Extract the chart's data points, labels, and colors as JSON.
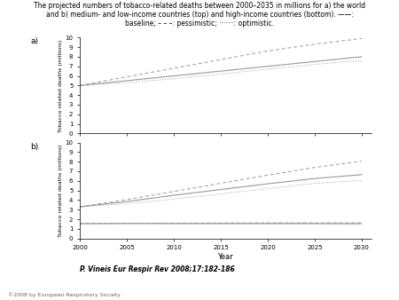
{
  "title_line1": "The projected numbers of tobacco-related deaths between 2000–2035 in millions for a) the world",
  "title_line2": "and b) medium- and low-income countries (top) and high-income countries (bottom). ——:",
  "title_line3": "baseline; – – –: pessimistic; ·······: optimistic.",
  "citation": "P. Vineis Eur Respir Rev 2008;17:182-186",
  "copyright": "©2008 by European Respiratory Society",
  "years": [
    2000,
    2005,
    2010,
    2015,
    2020,
    2025,
    2030
  ],
  "panel_a": {
    "label": "a)",
    "ylabel": "Tobacco related deaths (millions)",
    "ylim": [
      0,
      10
    ],
    "yticks": [
      0,
      1,
      2,
      3,
      4,
      5,
      6,
      7,
      8,
      9,
      10
    ],
    "baseline": [
      5.0,
      5.5,
      6.0,
      6.5,
      7.0,
      7.5,
      8.0
    ],
    "pessimistic": [
      5.0,
      5.9,
      6.8,
      7.7,
      8.6,
      9.3,
      9.9
    ],
    "optimistic": [
      5.0,
      5.3,
      5.7,
      6.2,
      6.7,
      7.2,
      7.6
    ]
  },
  "panel_b": {
    "label": "b)",
    "ylabel": "Tobacco related deaths (millions)",
    "ylim": [
      0,
      10
    ],
    "yticks": [
      0,
      1,
      2,
      3,
      4,
      5,
      6,
      7,
      8,
      9,
      10
    ],
    "baseline_top": [
      3.3,
      3.85,
      4.5,
      5.1,
      5.7,
      6.25,
      6.65
    ],
    "pessimistic_top": [
      3.3,
      4.05,
      4.9,
      5.75,
      6.6,
      7.4,
      8.05
    ],
    "optimistic_top": [
      3.3,
      3.65,
      4.1,
      4.65,
      5.2,
      5.75,
      6.05
    ],
    "baseline_bottom": [
      1.55,
      1.57,
      1.57,
      1.57,
      1.57,
      1.57,
      1.55
    ],
    "pessimistic_bottom": [
      1.55,
      1.58,
      1.6,
      1.62,
      1.63,
      1.63,
      1.63
    ],
    "optimistic_bottom": [
      1.55,
      1.53,
      1.51,
      1.5,
      1.49,
      1.48,
      1.47
    ]
  },
  "line_color": "#999999",
  "xlabel": "Year",
  "xticks": [
    2000,
    2005,
    2010,
    2015,
    2020,
    2025,
    2030
  ],
  "xlim": [
    2000,
    2031
  ]
}
